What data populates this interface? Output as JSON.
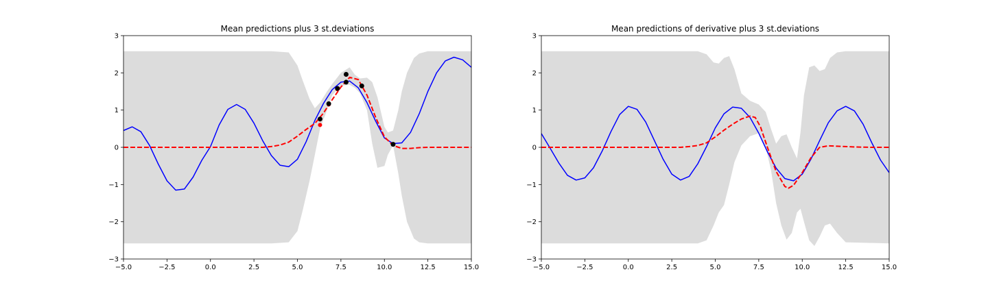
{
  "chart_data": [
    {
      "type": "line",
      "title": "Mean predictions plus 3 st.deviations",
      "xlabel": "",
      "ylabel": "",
      "xlim": [
        -5,
        15
      ],
      "ylim": [
        -3,
        3
      ],
      "xticks": [
        -5,
        -2.5,
        0,
        2.5,
        5,
        7.5,
        10,
        12.5,
        15
      ],
      "xtick_labels": [
        "−5.0",
        "−2.5",
        "0.0",
        "2.5",
        "5.0",
        "7.5",
        "10.0",
        "12.5",
        "15.0"
      ],
      "yticks": [
        -3,
        -2,
        -1,
        0,
        1,
        2,
        3
      ],
      "ytick_labels": [
        "−3",
        "−2",
        "−1",
        "0",
        "1",
        "2",
        "3"
      ],
      "colors": {
        "true": "#0000ff",
        "mean": "#ff0000",
        "band": "#dcdcdc",
        "obs": "#000000",
        "pred": "#ff0000"
      },
      "band": {
        "x": [
          -5,
          3.5,
          4.5,
          5.0,
          5.3,
          5.7,
          6.0,
          6.3,
          6.7,
          7.0,
          7.5,
          8.0,
          8.3,
          8.6,
          9.0,
          9.3,
          9.6,
          10.0,
          10.2,
          10.5,
          10.8,
          11.0,
          11.3,
          11.7,
          12.0,
          12.5,
          15
        ],
        "upper": [
          2.58,
          2.58,
          2.55,
          2.2,
          1.8,
          1.3,
          1.05,
          1.2,
          1.5,
          1.7,
          2.0,
          2.15,
          1.95,
          1.85,
          1.87,
          1.75,
          1.35,
          0.55,
          0.4,
          0.45,
          1.0,
          1.5,
          2.0,
          2.4,
          2.52,
          2.58,
          2.58
        ],
        "lower": [
          -2.58,
          -2.58,
          -2.55,
          -2.25,
          -1.7,
          -0.9,
          -0.2,
          0.5,
          1.0,
          1.4,
          1.65,
          1.68,
          1.6,
          1.45,
          1.0,
          0.1,
          -0.55,
          -0.5,
          -0.2,
          0.05,
          -0.7,
          -1.3,
          -2.0,
          -2.45,
          -2.55,
          -2.58,
          -2.58
        ]
      },
      "series": [
        {
          "kind": "true",
          "x": [
            -5,
            -4.5,
            -4,
            -3.5,
            -3,
            -2.5,
            -2,
            -1.5,
            -1,
            -0.5,
            0,
            0.5,
            1,
            1.5,
            2,
            2.5,
            3,
            3.5,
            4,
            4.5,
            5,
            5.5,
            6,
            6.5,
            7,
            7.5,
            8,
            8.5,
            9,
            9.5,
            10,
            10.5,
            11,
            11.5,
            12,
            12.5,
            13,
            13.5,
            14,
            14.5,
            15
          ],
          "y": [
            0.45,
            0.55,
            0.42,
            0.05,
            -0.45,
            -0.9,
            -1.15,
            -1.12,
            -0.8,
            -0.35,
            0.02,
            0.6,
            1.02,
            1.15,
            1.02,
            0.65,
            0.18,
            -0.22,
            -0.48,
            -0.52,
            -0.32,
            0.15,
            0.72,
            1.18,
            1.55,
            1.75,
            1.78,
            1.6,
            1.2,
            0.7,
            0.25,
            0.1,
            0.12,
            0.4,
            0.9,
            1.5,
            2.0,
            2.32,
            2.42,
            2.35,
            2.15
          ]
        },
        {
          "kind": "mean",
          "x": [
            -5,
            2,
            3,
            3.5,
            4,
            4.5,
            5,
            5.5,
            6,
            6.5,
            7,
            7.5,
            8,
            8.5,
            9,
            9.5,
            10,
            10.5,
            11,
            11.5,
            12,
            12.5,
            13,
            15
          ],
          "y": [
            0,
            0,
            0.0,
            0.02,
            0.06,
            0.14,
            0.3,
            0.48,
            0.64,
            0.92,
            1.28,
            1.62,
            1.88,
            1.82,
            1.4,
            0.8,
            0.28,
            0.05,
            -0.03,
            -0.03,
            -0.01,
            0,
            0,
            0
          ]
        }
      ],
      "observations": {
        "x": [
          6.3,
          6.8,
          7.3,
          7.8,
          7.8,
          8.7,
          10.5
        ],
        "y": [
          0.76,
          1.17,
          1.58,
          1.75,
          1.96,
          1.65,
          0.08
        ]
      },
      "predicted_points": {
        "x": [
          6.3,
          6.3,
          6.8,
          7.3,
          7.8,
          8.7,
          10.5
        ],
        "y": [
          0.6,
          0.75,
          1.15,
          1.56,
          1.95,
          1.64,
          0.08
        ]
      }
    },
    {
      "type": "line",
      "title": "Mean predictions of derivative plus 3 st.deviations",
      "xlabel": "",
      "ylabel": "",
      "xlim": [
        -5,
        15
      ],
      "ylim": [
        -3,
        3
      ],
      "xticks": [
        -5,
        -2.5,
        0,
        2.5,
        5,
        7.5,
        10,
        12.5,
        15
      ],
      "xtick_labels": [
        "−5.0",
        "−2.5",
        "0.0",
        "2.5",
        "5.0",
        "7.5",
        "10.0",
        "12.5",
        "15.0"
      ],
      "yticks": [
        -3,
        -2,
        -1,
        0,
        1,
        2,
        3
      ],
      "ytick_labels": [
        "−3",
        "−2",
        "−1",
        "0",
        "1",
        "2",
        "3"
      ],
      "colors": {
        "true": "#0000ff",
        "mean": "#ff0000",
        "band": "#dcdcdc"
      },
      "band": {
        "x": [
          -5,
          4.0,
          4.5,
          4.9,
          5.2,
          5.5,
          5.8,
          6.1,
          6.5,
          7.0,
          7.5,
          7.9,
          8.2,
          8.5,
          8.8,
          9.1,
          9.4,
          9.7,
          9.9,
          10.1,
          10.4,
          10.7,
          11.0,
          11.3,
          11.6,
          12.0,
          12.5,
          15
        ],
        "upper": [
          2.58,
          2.58,
          2.5,
          2.28,
          2.25,
          2.4,
          2.45,
          2.1,
          1.45,
          1.25,
          1.15,
          0.95,
          0.5,
          0.1,
          0.3,
          0.35,
          0.0,
          -0.3,
          0.4,
          1.4,
          2.15,
          2.2,
          2.05,
          2.1,
          2.4,
          2.55,
          2.58,
          2.58
        ],
        "lower": [
          -2.58,
          -2.58,
          -2.5,
          -2.1,
          -1.75,
          -1.55,
          -1.0,
          -0.4,
          0.05,
          0.3,
          0.38,
          0.0,
          -0.6,
          -1.5,
          -2.1,
          -2.48,
          -2.3,
          -1.75,
          -1.65,
          -2.0,
          -2.5,
          -2.65,
          -2.4,
          -2.1,
          -2.05,
          -2.3,
          -2.55,
          -2.58
        ]
      },
      "series": [
        {
          "kind": "true",
          "x": [
            -5,
            -4.5,
            -4,
            -3.5,
            -3,
            -2.5,
            -2,
            -1.5,
            -1,
            -0.5,
            0,
            0.5,
            1,
            1.5,
            2,
            2.5,
            3,
            3.5,
            4,
            4.5,
            5,
            5.5,
            6,
            6.5,
            7,
            7.5,
            8,
            8.5,
            9,
            9.5,
            10,
            10.5,
            11,
            11.5,
            12,
            12.5,
            13,
            13.5,
            14,
            14.5,
            15
          ],
          "y": [
            0.37,
            -0.02,
            -0.42,
            -0.75,
            -0.88,
            -0.82,
            -0.55,
            -0.1,
            0.42,
            0.88,
            1.1,
            1.02,
            0.68,
            0.18,
            -0.32,
            -0.72,
            -0.88,
            -0.78,
            -0.44,
            0.02,
            0.52,
            0.9,
            1.08,
            1.05,
            0.8,
            0.38,
            -0.12,
            -0.56,
            -0.84,
            -0.9,
            -0.72,
            -0.32,
            0.18,
            0.66,
            0.98,
            1.1,
            0.98,
            0.62,
            0.12,
            -0.34,
            -0.68
          ]
        },
        {
          "kind": "mean",
          "x": [
            -5,
            2,
            3,
            3.5,
            4,
            4.5,
            5,
            5.5,
            6,
            6.5,
            7,
            7.3,
            7.6,
            8,
            8.5,
            9,
            9.2,
            9.5,
            10,
            10.5,
            11,
            11.5,
            12,
            12.5,
            13,
            14,
            15
          ],
          "y": [
            0,
            0,
            0.0,
            0.02,
            0.05,
            0.12,
            0.28,
            0.46,
            0.62,
            0.76,
            0.84,
            0.8,
            0.55,
            0.0,
            -0.65,
            -1.05,
            -1.1,
            -1.02,
            -0.68,
            -0.28,
            0.0,
            0.04,
            0.03,
            0.02,
            0.01,
            0,
            0
          ]
        }
      ]
    }
  ]
}
